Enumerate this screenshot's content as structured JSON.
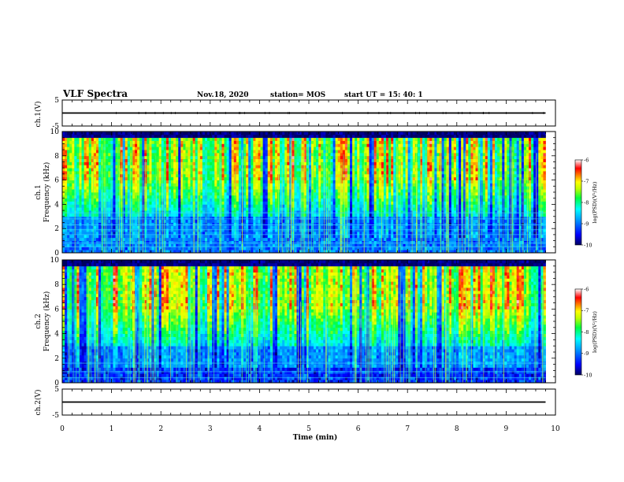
{
  "header": {
    "title": "VLF Spectra",
    "date": "Nov.18, 2020",
    "station": "station= MOS",
    "start": "start  UT =   15: 40: 1"
  },
  "labels": {
    "ch1_wave_ylabel": "ch.1(V)",
    "ch1_spec_ylabel_a": "ch.1",
    "ch1_spec_ylabel_b": "Frequency  (kHz)",
    "ch2_spec_ylabel_a": "ch.2",
    "ch2_spec_ylabel_b": "Frequency  (kHz)",
    "ch2_wave_ylabel": "ch.2(V)",
    "xlabel": "Time  (min)",
    "cbar_label": "log(PSD)(V²/Hz)"
  },
  "chart_data": [
    {
      "type": "line",
      "name": "ch1-waveform",
      "ylabel": "ch.1(V)",
      "ylim": [
        -5,
        5
      ],
      "yticks": [
        "5",
        "-5"
      ],
      "x": [
        0,
        9.8
      ],
      "y": [
        0,
        0
      ]
    },
    {
      "type": "heatmap",
      "name": "ch1-spectrogram",
      "ylabel": "ch.1 Frequency (kHz)",
      "xlim": [
        0,
        10
      ],
      "ylim": [
        0,
        10
      ],
      "yticks": [
        "0",
        "2",
        "4",
        "6",
        "8",
        "10"
      ],
      "data_extent_min": [
        0,
        9.8
      ],
      "colorbar": {
        "label": "log(PSD)(V²/Hz)",
        "range": [
          -10,
          -6
        ],
        "ticks": [
          "-6",
          "-7",
          "-8",
          "-9",
          "-10"
        ]
      }
    },
    {
      "type": "heatmap",
      "name": "ch2-spectrogram",
      "ylabel": "ch.2 Frequency (kHz)",
      "xlim": [
        0,
        10
      ],
      "ylim": [
        0,
        10
      ],
      "yticks": [
        "0",
        "2",
        "4",
        "6",
        "8",
        "10"
      ],
      "data_extent_min": [
        0,
        9.8
      ],
      "colorbar": {
        "label": "log(PSD)(V²/Hz)",
        "range": [
          -10,
          -6
        ],
        "ticks": [
          "-6",
          "-7",
          "-8",
          "-9",
          "-10"
        ]
      }
    },
    {
      "type": "line",
      "name": "ch2-waveform",
      "ylabel": "ch.2(V)",
      "ylim": [
        -5,
        5
      ],
      "yticks": [
        "5",
        "-5"
      ],
      "x": [
        0,
        9.8
      ],
      "y": [
        0,
        0
      ]
    }
  ],
  "x_axis": {
    "label": "Time  (min)",
    "range": [
      0,
      10
    ],
    "ticks": [
      "0",
      "1",
      "2",
      "3",
      "4",
      "5",
      "6",
      "7",
      "8",
      "9",
      "10"
    ]
  },
  "colors": {
    "colormap": [
      "#000080",
      "#0000ff",
      "#00a0ff",
      "#00ffff",
      "#00ff60",
      "#a0ff00",
      "#ffff00",
      "#ff8000",
      "#ff0000",
      "#ffffff"
    ]
  }
}
